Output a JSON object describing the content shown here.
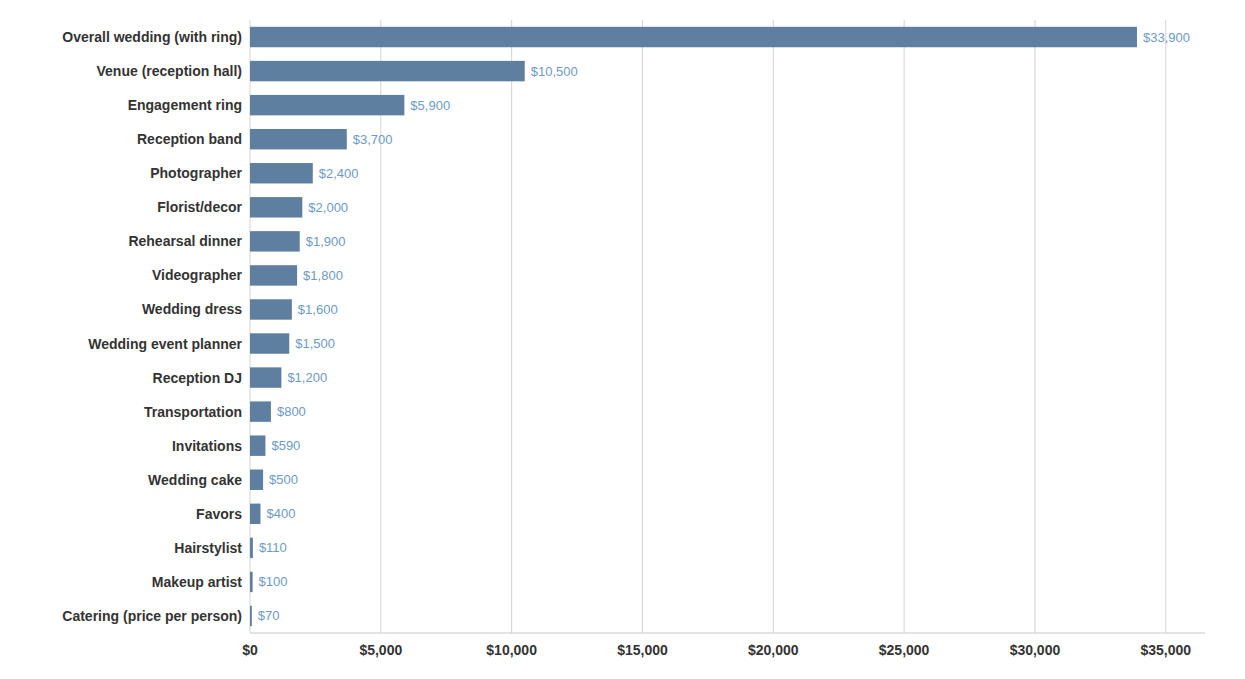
{
  "chart_data": {
    "type": "bar",
    "orientation": "horizontal",
    "categories": [
      "Catering (price per person)",
      "Makeup artist",
      "Hairstylist",
      "Favors",
      "Wedding cake",
      "Invitations",
      "Transportation",
      "Reception DJ",
      "Wedding event planner",
      "Wedding dress",
      "Videographer",
      "Rehearsal dinner",
      "Florist/decor",
      "Photographer",
      "Reception band",
      "Engagement ring",
      "Venue (reception hall)",
      "Overall wedding (with ring)"
    ],
    "values": [
      70,
      100,
      110,
      400,
      500,
      590,
      800,
      1200,
      1500,
      1600,
      1800,
      1900,
      2000,
      2400,
      3700,
      5900,
      10500,
      33900
    ],
    "value_labels": [
      "$70",
      "$100",
      "$110",
      "$400",
      "$500",
      "$590",
      "$800",
      "$1,200",
      "$1,500",
      "$1,600",
      "$1,800",
      "$1,900",
      "$2,000",
      "$2,400",
      "$3,700",
      "$5,900",
      "$10,500",
      "$33,900"
    ],
    "data_labels": true,
    "color": "#5f7fa0",
    "xlim": [
      0,
      36500
    ],
    "xticks": [
      {
        "value": 0,
        "label": "$0"
      },
      {
        "value": 5000,
        "label": "$5,000"
      },
      {
        "value": 10000,
        "label": "$10,000"
      },
      {
        "value": 15000,
        "label": "$15,000"
      },
      {
        "value": 20000,
        "label": "$20,000"
      },
      {
        "value": 25000,
        "label": "$25,000"
      },
      {
        "value": 30000,
        "label": "$30,000"
      },
      {
        "value": 35000,
        "label": "$35,000"
      }
    ],
    "grid": true
  }
}
